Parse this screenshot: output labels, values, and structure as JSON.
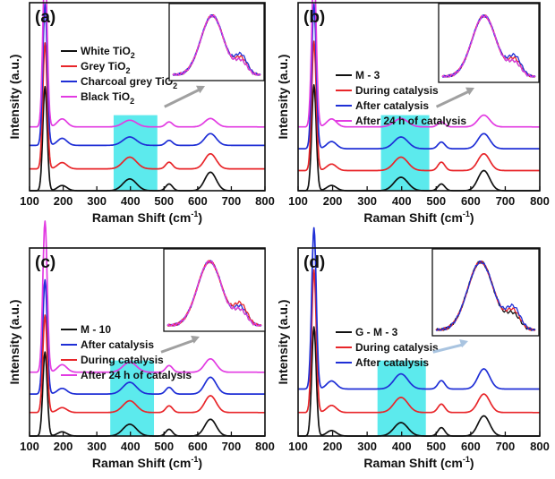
{
  "figure": {
    "xlabel_main": "Raman Shift (cm",
    "xlabel_sup": "-1",
    "xlabel_tail": ")",
    "ylabel": "Intensity (a.u.)"
  },
  "chart_data": [
    {
      "type": "line",
      "panel_label": "(a)",
      "xlabel": "Raman Shift (cm-1)",
      "ylabel": "Intensity (a.u.)",
      "xlim": [
        100,
        800
      ],
      "xticks": [
        "100",
        "200",
        "300",
        "400",
        "500",
        "600",
        "700",
        "800"
      ],
      "highlight_x": [
        350,
        480
      ],
      "series": [
        {
          "name": "White TiO2",
          "label_main": "White TiO",
          "label_sub": "2",
          "color": "#111111",
          "baseline": 0.0,
          "peak_height": 0.62,
          "offsets": {
            "400": 0.07,
            "515": 0.04,
            "640": 0.11
          }
        },
        {
          "name": "Grey TiO2",
          "label_main": "Grey TiO",
          "label_sub": "2",
          "color": "#e8262a",
          "baseline": 0.13,
          "peak_height": 0.75,
          "offsets": {
            "400": 0.07,
            "515": 0.04,
            "640": 0.09
          }
        },
        {
          "name": "Charcoal grey TiO2",
          "label_main": "Charcoal grey TiO",
          "label_sub": "2",
          "color": "#1f2fd6",
          "baseline": 0.27,
          "peak_height": 0.84,
          "offsets": {
            "400": 0.05,
            "515": 0.03,
            "640": 0.07
          }
        },
        {
          "name": "Black TiO2",
          "label_main": "Black TiO",
          "label_sub": "2",
          "color": "#e23be2",
          "baseline": 0.38,
          "peak_height": 0.96,
          "offsets": {
            "400": 0.04,
            "515": 0.03,
            "640": 0.05
          }
        }
      ]
    },
    {
      "type": "line",
      "panel_label": "(b)",
      "xlabel": "Raman Shift (cm-1)",
      "ylabel": "Intensity (a.u.)",
      "xlim": [
        100,
        800
      ],
      "xticks": [
        "100",
        "200",
        "300",
        "400",
        "500",
        "600",
        "700",
        "800"
      ],
      "highlight_x": [
        340,
        480
      ],
      "series": [
        {
          "name": "M - 3",
          "color": "#111111",
          "baseline": 0.0,
          "peak_height": 0.63,
          "offsets": {
            "400": 0.08,
            "515": 0.04,
            "640": 0.12
          }
        },
        {
          "name": "During catalysis",
          "color": "#e8262a",
          "baseline": 0.12,
          "peak_height": 0.77,
          "offsets": {
            "400": 0.08,
            "515": 0.05,
            "640": 0.1
          }
        },
        {
          "name": "After catalysis",
          "color": "#1f2fd6",
          "baseline": 0.25,
          "peak_height": 0.86,
          "offsets": {
            "400": 0.07,
            "515": 0.04,
            "640": 0.09
          }
        },
        {
          "name": "After 24 h of catalysis",
          "color": "#e23be2",
          "baseline": 0.38,
          "peak_height": 0.95,
          "offsets": {
            "400": 0.05,
            "515": 0.03,
            "640": 0.07
          }
        }
      ]
    },
    {
      "type": "line",
      "panel_label": "(c)",
      "xlabel": "Raman Shift (cm-1)",
      "ylabel": "Intensity (a.u.)",
      "xlim": [
        100,
        800
      ],
      "xticks": [
        "100",
        "200",
        "300",
        "400",
        "500",
        "600",
        "700",
        "800"
      ],
      "highlight_x": [
        340,
        470
      ],
      "series": [
        {
          "name": "M - 10",
          "color": "#111111",
          "baseline": 0.0,
          "peak_height": 0.5,
          "offsets": {
            "400": 0.07,
            "515": 0.04,
            "640": 0.1
          }
        },
        {
          "name": "After catalysis",
          "color": "#1f2fd6",
          "baseline": 0.25,
          "peak_height": 0.68,
          "offsets": {
            "400": 0.07,
            "515": 0.04,
            "640": 0.1
          }
        },
        {
          "name": "During catalysis",
          "color": "#e8262a",
          "baseline": 0.14,
          "peak_height": 0.58,
          "offsets": {
            "400": 0.07,
            "515": 0.04,
            "640": 0.1
          }
        },
        {
          "name": "After 24 h of catalysis",
          "color": "#e23be2",
          "baseline": 0.38,
          "peak_height": 0.9,
          "offsets": {
            "400": 0.06,
            "515": 0.04,
            "640": 0.08
          }
        }
      ]
    },
    {
      "type": "line",
      "panel_label": "(d)",
      "xlabel": "Raman Shift (cm-1)",
      "ylabel": "Intensity (a.u.)",
      "xlim": [
        100,
        800
      ],
      "xticks": [
        "100",
        "200",
        "300",
        "400",
        "500",
        "600",
        "700",
        "800"
      ],
      "highlight_x": [
        330,
        470
      ],
      "series": [
        {
          "name": "G - M - 3",
          "color": "#111111",
          "baseline": 0.0,
          "peak_height": 0.65,
          "offsets": {
            "400": 0.08,
            "515": 0.05,
            "640": 0.12
          }
        },
        {
          "name": "During catalysis",
          "color": "#e8262a",
          "baseline": 0.14,
          "peak_height": 0.85,
          "offsets": {
            "400": 0.09,
            "515": 0.05,
            "640": 0.11
          }
        },
        {
          "name": "After catalysis",
          "color": "#1f2fd6",
          "baseline": 0.28,
          "peak_height": 0.96,
          "offsets": {
            "400": 0.09,
            "515": 0.05,
            "640": 0.12
          }
        }
      ]
    }
  ]
}
